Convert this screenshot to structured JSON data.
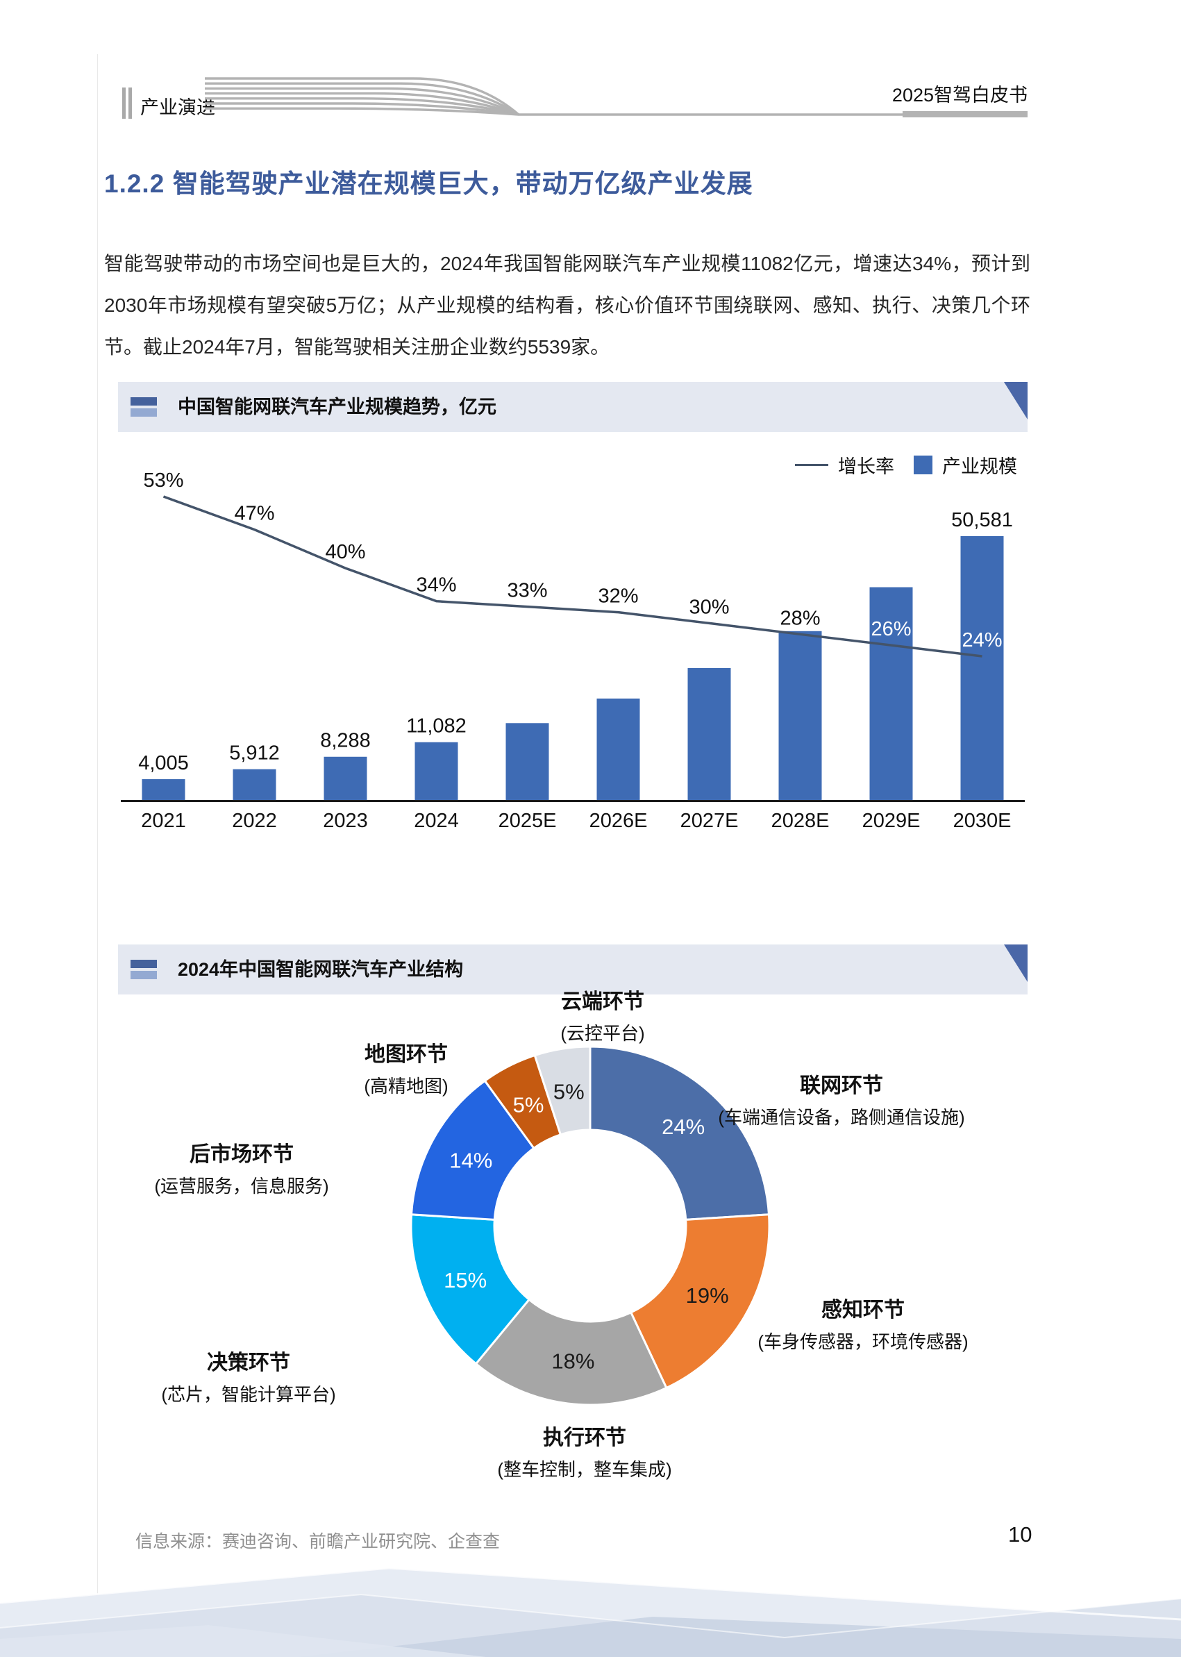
{
  "page": {
    "header": {
      "section": "产业演进",
      "booklet": "2025智驾白皮书"
    },
    "heading": "1.2.2 智能驾驶产业潜在规模巨大，带动万亿级产业发展",
    "paragraph": "智能驾驶带动的市场空间也是巨大的，2024年我国智能网联汽车产业规模11082亿元，增速达34%，预计到2030年市场规模有望突破5万亿；从产业规模的结构看，核心价值环节围绕联网、感知、执行、决策几个环节。截止2024年7月，智能驾驶相关注册企业数约5539家。",
    "footer": {
      "source": "信息来源：赛迪咨询、前瞻产业研究院、企查查",
      "page_number": "10"
    }
  },
  "colors": {
    "heading_blue": "#3D5B9B",
    "panel_bg": "#E4E8F1",
    "panel_icon_dark": "#44619C",
    "panel_icon_light": "#93A9D2",
    "panel_corner": "#4A67A8",
    "bar_blue": "#3E6BB4",
    "line_slate": "#44546A"
  },
  "chart_data": [
    {
      "type": "bar",
      "title": "中国智能网联汽车产业规模趋势，亿元",
      "categories": [
        "2021",
        "2022",
        "2023",
        "2024",
        "2025E",
        "2026E",
        "2027E",
        "2028E",
        "2029E",
        "2030E"
      ],
      "legend_position": "top-right",
      "grid": false,
      "series": [
        {
          "name": "产业规模",
          "type": "bar",
          "color": "#3E6BB4",
          "values": [
            4005,
            5912,
            8288,
            11082,
            14739,
            19455,
            25292,
            32374,
            40791,
            50581
          ],
          "labels": [
            "4,005",
            "5,912",
            "8,288",
            "11,082",
            "",
            "",
            "",
            "",
            "",
            "50,581"
          ]
        },
        {
          "name": "增长率",
          "type": "line",
          "color": "#44546A",
          "values": [
            53,
            47,
            40,
            34,
            33,
            32,
            30,
            28,
            26,
            24
          ],
          "labels": [
            "53%",
            "47%",
            "40%",
            "34%",
            "33%",
            "32%",
            "30%",
            "28%",
            "26%",
            "24%"
          ],
          "label_colors": [
            "#111111",
            "#111111",
            "#111111",
            "#111111",
            "#111111",
            "#111111",
            "#111111",
            "#111111",
            "#ffffff",
            "#ffffff"
          ]
        }
      ]
    },
    {
      "type": "pie",
      "subtype": "donut",
      "title": "2024年中国智能网联汽车产业结构",
      "slices": [
        {
          "name": "联网环节",
          "detail": "(车端通信设备，路侧通信设施)",
          "value": 24,
          "label": "24%",
          "color": "#4C6EA8",
          "label_color": "#ffffff"
        },
        {
          "name": "感知环节",
          "detail": "(车身传感器，环境传感器)",
          "value": 19,
          "label": "19%",
          "color": "#ED7D31",
          "label_color": "#1a1a1a"
        },
        {
          "name": "执行环节",
          "detail": "(整车控制，整车集成)",
          "value": 18,
          "label": "18%",
          "color": "#A6A6A6",
          "label_color": "#1a1a1a"
        },
        {
          "name": "决策环节",
          "detail": "(芯片，智能计算平台)",
          "value": 15,
          "label": "15%",
          "color": "#00B0F0",
          "label_color": "#ffffff"
        },
        {
          "name": "后市场环节",
          "detail": "(运营服务，信息服务)",
          "value": 14,
          "label": "14%",
          "color": "#2365E1",
          "label_color": "#ffffff"
        },
        {
          "name": "地图环节",
          "detail": "(高精地图)",
          "value": 5,
          "label": "5%",
          "color": "#C55A11",
          "label_color": "#ffffff"
        },
        {
          "name": "云端环节",
          "detail": "(云控平台)",
          "value": 5,
          "label": "5%",
          "color": "#D9DDE4",
          "label_color": "#1a1a1a"
        }
      ]
    }
  ]
}
